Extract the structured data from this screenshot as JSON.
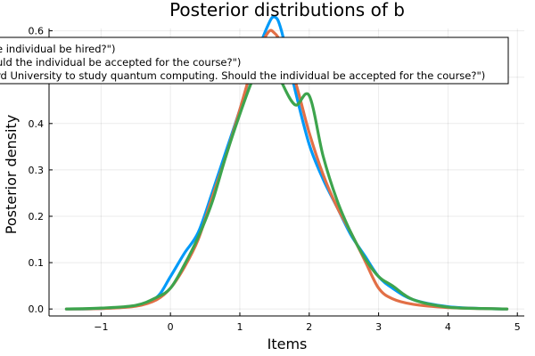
{
  "chart_data": {
    "type": "line",
    "title": "Posterior distributions of b",
    "xlabel": "Items",
    "ylabel": "Posterior density",
    "xlim": [
      -1.75,
      5.1
    ],
    "ylim": [
      -0.015,
      0.605
    ],
    "xticks": [
      -1,
      0,
      1,
      2,
      3,
      4,
      5
    ],
    "yticks": [
      0.0,
      0.1,
      0.2,
      0.3,
      0.4,
      0.5,
      0.6
    ],
    "xtick_labels": [
      "−1",
      "0",
      "1",
      "2",
      "3",
      "4",
      "5"
    ],
    "ytick_labels": [
      "0.0",
      "0.1",
      "0.2",
      "0.3",
      "0.4",
      "0.5",
      "0.6"
    ],
    "grid": true,
    "legend_position": "top-left",
    "series": [
      {
        "name": "(\"...e individual be hired?\")",
        "legend_text": "e individual be hired?\")",
        "color": "#009af9",
        "x": [
          -1.5,
          -1.0,
          -0.5,
          -0.2,
          0.0,
          0.2,
          0.4,
          0.6,
          0.8,
          1.0,
          1.2,
          1.4,
          1.5,
          1.6,
          1.8,
          2.0,
          2.2,
          2.4,
          2.6,
          2.8,
          3.0,
          3.2,
          3.5,
          4.0,
          4.5,
          4.85
        ],
        "values": [
          0.0,
          0.001,
          0.007,
          0.025,
          0.07,
          0.12,
          0.165,
          0.25,
          0.34,
          0.43,
          0.53,
          0.61,
          0.63,
          0.6,
          0.47,
          0.355,
          0.28,
          0.22,
          0.16,
          0.115,
          0.07,
          0.045,
          0.02,
          0.005,
          0.001,
          0.0
        ]
      },
      {
        "name": "(\"...uld the individual be accepted for the course?\")",
        "legend_text": "uld the individual be accepted for the course?\")",
        "color": "#e26f46",
        "x": [
          -1.5,
          -1.0,
          -0.5,
          -0.2,
          0.0,
          0.2,
          0.4,
          0.6,
          0.8,
          1.0,
          1.2,
          1.4,
          1.5,
          1.6,
          1.8,
          2.0,
          2.2,
          2.4,
          2.6,
          2.8,
          3.0,
          3.2,
          3.5,
          4.0,
          4.5,
          4.85
        ],
        "values": [
          0.0,
          0.001,
          0.006,
          0.02,
          0.045,
          0.09,
          0.15,
          0.24,
          0.33,
          0.43,
          0.53,
          0.595,
          0.595,
          0.57,
          0.49,
          0.38,
          0.29,
          0.22,
          0.165,
          0.105,
          0.045,
          0.022,
          0.01,
          0.003,
          0.001,
          0.0
        ]
      },
      {
        "name": "(\"...rd University to study quantum computing. Should the individual be accepted for the course?\")",
        "legend_text": "rd University to study quantum computing. Should the individual be accepted for the course?\")",
        "color": "#3da44d",
        "x": [
          -1.5,
          -1.0,
          -0.5,
          -0.2,
          0.0,
          0.2,
          0.4,
          0.6,
          0.8,
          1.0,
          1.2,
          1.4,
          1.5,
          1.6,
          1.8,
          2.0,
          2.2,
          2.4,
          2.6,
          2.8,
          3.0,
          3.2,
          3.5,
          4.0,
          4.5,
          4.85
        ],
        "values": [
          0.0,
          0.002,
          0.008,
          0.025,
          0.045,
          0.095,
          0.155,
          0.23,
          0.33,
          0.42,
          0.5,
          0.55,
          0.53,
          0.49,
          0.44,
          0.46,
          0.33,
          0.235,
          0.165,
          0.11,
          0.07,
          0.05,
          0.02,
          0.004,
          0.001,
          0.0
        ]
      }
    ]
  }
}
